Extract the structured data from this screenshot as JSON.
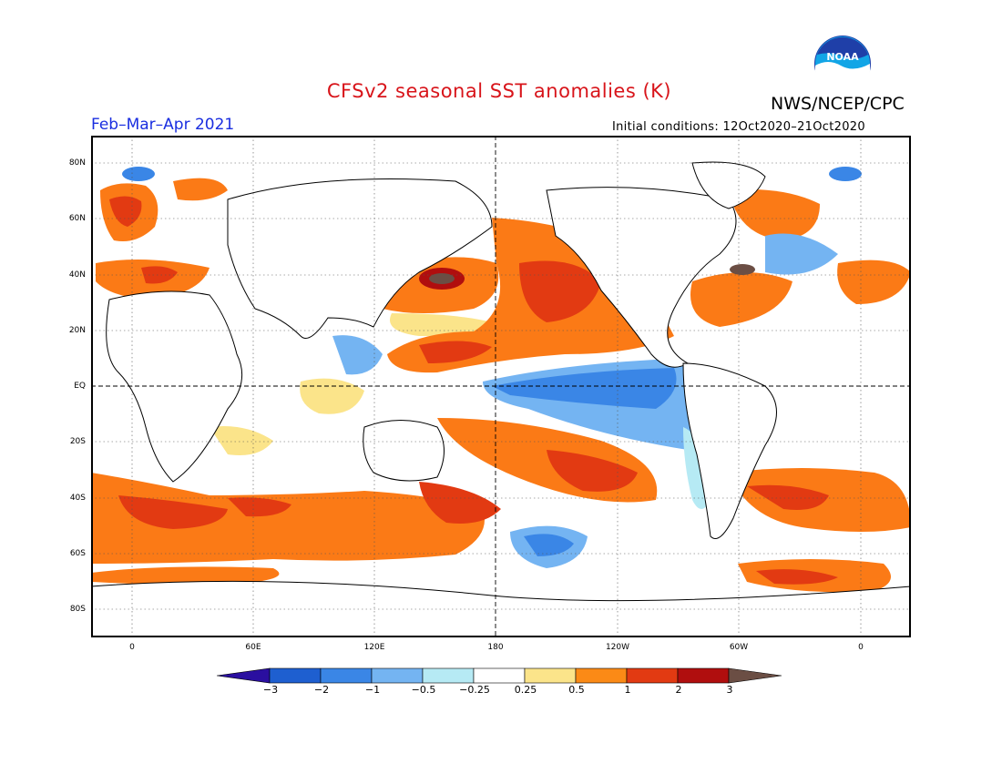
{
  "title": "CFSv2 seasonal SST anomalies (K)",
  "agency": "NWS/NCEP/CPC",
  "logo_text": "NOAA",
  "period": "Feb–Mar–Apr 2021",
  "initial_conditions": "Initial conditions: 12Oct2020–21Oct2020",
  "lat_labels": [
    "80N",
    "60N",
    "40N",
    "20N",
    "EQ",
    "20S",
    "40S",
    "60S",
    "80S"
  ],
  "lon_labels": [
    "0",
    "60E",
    "120E",
    "180",
    "120W",
    "60W",
    "0"
  ],
  "colorbar": {
    "labels": [
      "−3",
      "−2",
      "−1",
      "−0.5",
      "−0.25",
      "0.25",
      "0.5",
      "1",
      "2",
      "3"
    ],
    "colors": [
      "#2a0fa0",
      "#1e5fd0",
      "#3a86e6",
      "#74b4f2",
      "#b6eaf4",
      "#ffffff",
      "#fbe48a",
      "#fb8a16",
      "#e23a12",
      "#b00e0e",
      "#6b4e44"
    ]
  },
  "colors": {
    "title": "#d8141a",
    "period": "#1a2ee0",
    "warm": "#fb7a16",
    "cool": "#3a86e6"
  }
}
